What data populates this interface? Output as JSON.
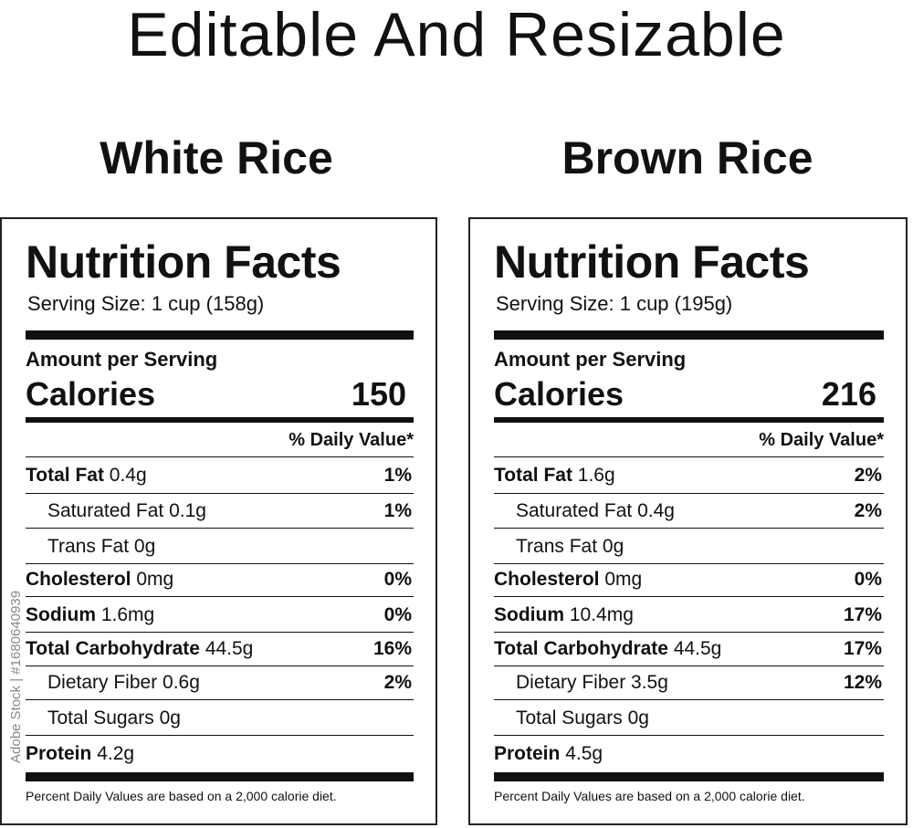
{
  "header": {
    "title": "Editable And Resizable"
  },
  "labels": [
    {
      "name": "White Rice",
      "heading": "Nutrition Facts",
      "serving": "Serving Size: 1 cup (158g)",
      "amount_heading": "Amount per Serving",
      "calories_label": "Calories",
      "calories": "150",
      "daily_value_heading": "% Daily Value*",
      "rows": [
        {
          "name": "Total Fat",
          "amount": "0.4g",
          "dv": "1%"
        },
        {
          "name": "Saturated Fat",
          "amount": "0.1g",
          "dv": "1%",
          "indent": true
        },
        {
          "name": "Trans Fat",
          "amount": "0g",
          "indent": true
        },
        {
          "name": "Cholesterol",
          "amount": "0mg",
          "dv": "0%"
        },
        {
          "name": "Sodium",
          "amount": "1.6mg",
          "dv": "0%"
        },
        {
          "name": "Total Carbohydrate",
          "amount": "44.5g",
          "dv": "16%"
        },
        {
          "name": "Dietary Fiber",
          "amount": "0.6g",
          "dv": "2%",
          "indent": true
        },
        {
          "name": "Total Sugars",
          "amount": "0g",
          "indent": true
        },
        {
          "name": "Protein",
          "amount": "4.2g"
        }
      ],
      "footnote": "Percent Daily Values are based on a 2,000 calorie diet."
    },
    {
      "name": "Brown Rice",
      "heading": "Nutrition Facts",
      "serving": "Serving Size: 1 cup (195g)",
      "amount_heading": "Amount per Serving",
      "calories_label": "Calories",
      "calories": "216",
      "daily_value_heading": "% Daily Value*",
      "rows": [
        {
          "name": "Total Fat",
          "amount": "1.6g",
          "dv": "2%"
        },
        {
          "name": "Saturated Fat",
          "amount": "0.4g",
          "dv": "2%",
          "indent": true
        },
        {
          "name": "Trans Fat",
          "amount": "0g",
          "indent": true
        },
        {
          "name": "Cholesterol",
          "amount": "0mg",
          "dv": "0%"
        },
        {
          "name": "Sodium",
          "amount": "10.4mg",
          "dv": "17%"
        },
        {
          "name": "Total Carbohydrate",
          "amount": "44.5g",
          "dv": "17%"
        },
        {
          "name": "Dietary Fiber",
          "amount": "3.5g",
          "dv": "12%",
          "indent": true
        },
        {
          "name": "Total Sugars",
          "amount": "0g",
          "indent": true
        },
        {
          "name": "Protein",
          "amount": "4.5g"
        }
      ],
      "footnote": "Percent Daily Values are based on a 2,000 calorie diet."
    }
  ],
  "watermark": "Adobe Stock | #1680640939"
}
